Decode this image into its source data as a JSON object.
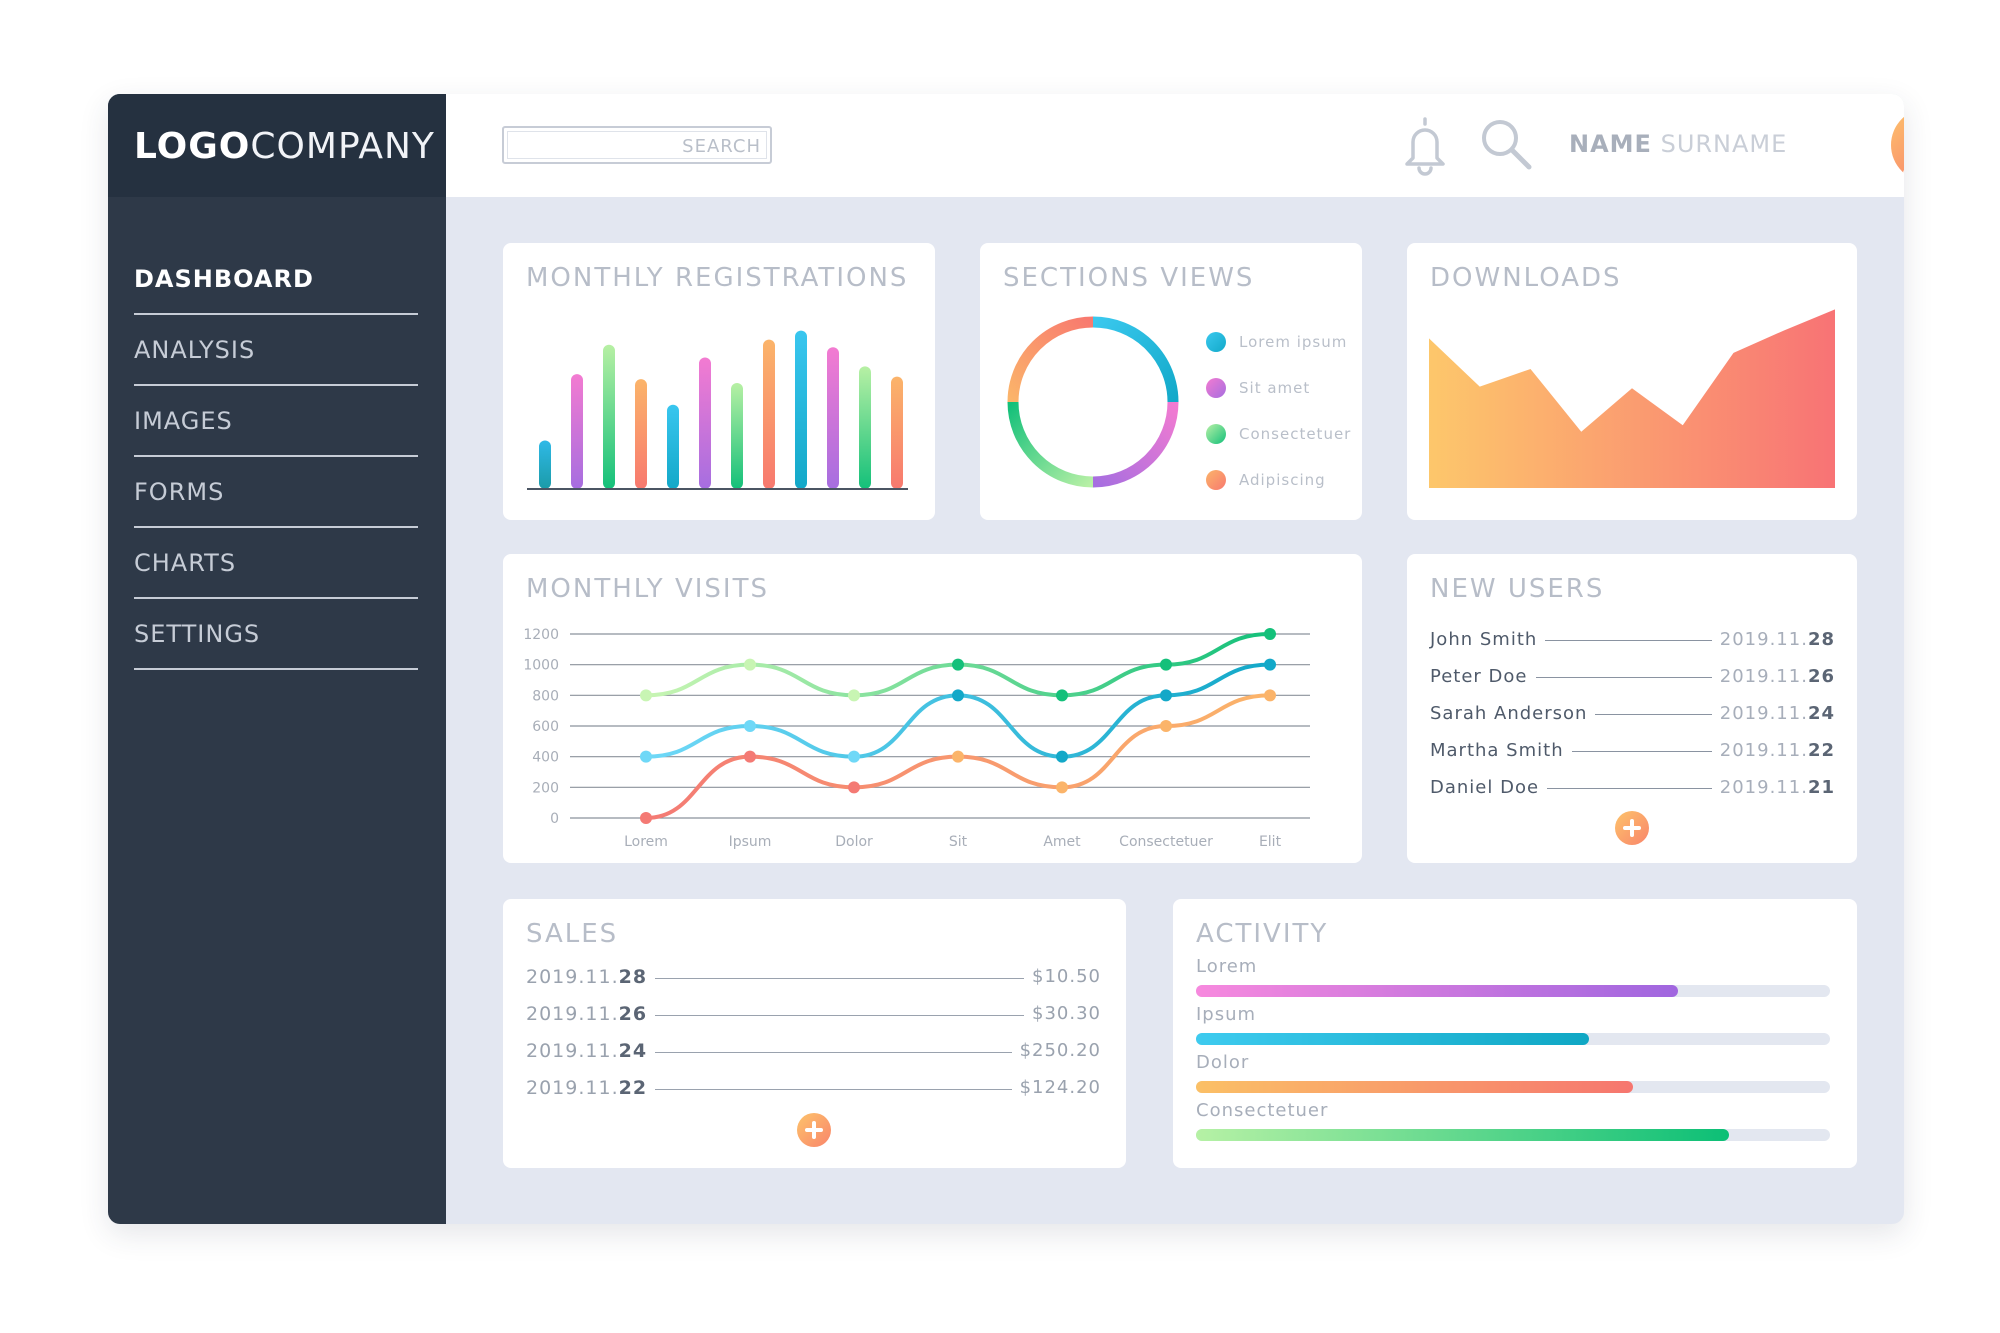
{
  "logo": {
    "bold": "LOGO",
    "light": "COMPANY"
  },
  "sidebar": {
    "items": [
      {
        "label": "DASHBOARD",
        "active": true
      },
      {
        "label": "ANALYSIS",
        "active": false
      },
      {
        "label": "IMAGES",
        "active": false
      },
      {
        "label": "FORMS",
        "active": false
      },
      {
        "label": "CHARTS",
        "active": false
      },
      {
        "label": "SETTINGS",
        "active": false
      }
    ]
  },
  "header": {
    "search_placeholder": "SEARCH",
    "user_name": "NAME",
    "user_surname": "SURNAME",
    "icons": [
      "bell-icon",
      "search-icon",
      "avatar"
    ]
  },
  "colors": {
    "sidebar": "#2e3948",
    "logo_bar": "#253140",
    "background": "#e3e7f1",
    "orange": "#fbb46a",
    "coral": "#f8796f",
    "pink": "#f37bd1",
    "purple": "#a66ee0",
    "cyan": "#39c6ef",
    "teal": "#13a8c8",
    "green": "#14c07a",
    "lime": "#aeeea0"
  },
  "monthly_registrations": {
    "title": "MONTHLY REGISTRATIONS",
    "chart_data": {
      "type": "bar",
      "values": [
        38,
        90,
        113,
        86,
        66,
        103,
        83,
        117,
        124,
        111,
        96,
        88
      ],
      "ylim": [
        0,
        130
      ],
      "colors": [
        [
          "#2fb9e7",
          "#1b9ba8"
        ],
        [
          "#f37bd1",
          "#a66ee0"
        ],
        [
          "#b7f0a4",
          "#14c07a"
        ],
        [
          "#fbb46a",
          "#f8796f"
        ],
        [
          "#39c6ef",
          "#13a8c8"
        ],
        [
          "#f37bd1",
          "#a66ee0"
        ],
        [
          "#b7f0a4",
          "#14c07a"
        ],
        [
          "#fbb46a",
          "#f8796f"
        ],
        [
          "#39c6ef",
          "#13a8c8"
        ],
        [
          "#f37bd1",
          "#a66ee0"
        ],
        [
          "#b7f0a4",
          "#14c07a"
        ],
        [
          "#fbb46a",
          "#f8796f"
        ]
      ]
    }
  },
  "sections_views": {
    "title": "SECTIONS VIEWS",
    "chart_data": {
      "type": "pie",
      "categories": [
        "Lorem ipsum",
        "Sit amet",
        "Consectetuer",
        "Adipiscing"
      ],
      "values": [
        25,
        25,
        25,
        25
      ],
      "colors": [
        [
          "#3ac8ee",
          "#12a9c9"
        ],
        [
          "#f37bd1",
          "#a66ee0"
        ],
        [
          "#b8f0a6",
          "#14c07a"
        ],
        [
          "#fbb46a",
          "#f8796f"
        ]
      ]
    }
  },
  "downloads": {
    "title": "DOWNLOADS",
    "chart_data": {
      "type": "area",
      "values": [
        93,
        63,
        74,
        35,
        62,
        39,
        84,
        98,
        111
      ],
      "ylim": [
        0,
        115
      ]
    }
  },
  "monthly_visits": {
    "title": "MONTHLY VISITS",
    "chart_data": {
      "type": "line",
      "categories": [
        "Lorem",
        "Ipsum",
        "Dolor",
        "Sit",
        "Amet",
        "Consectetuer",
        "Elit"
      ],
      "yticks": [
        1200,
        1000,
        800,
        600,
        400,
        200,
        0
      ],
      "ylim": [
        0,
        1200
      ],
      "series": [
        {
          "values": [
            800,
            1000,
            800,
            1000,
            800,
            1000,
            1200
          ],
          "colors": [
            "#c8f5b3",
            "#14c07a"
          ]
        },
        {
          "values": [
            400,
            600,
            400,
            800,
            400,
            800,
            1000
          ],
          "colors": [
            "#6fd8f7",
            "#13a8c8"
          ]
        },
        {
          "values": [
            0,
            400,
            200,
            400,
            200,
            600,
            800
          ],
          "colors": [
            "#f47a74",
            "#fbb46a"
          ]
        }
      ]
    }
  },
  "new_users": {
    "title": "NEW USERS",
    "rows": [
      {
        "name": "John Smith",
        "date_prefix": "2019.11.",
        "date_day": "28"
      },
      {
        "name": "Peter Doe",
        "date_prefix": "2019.11.",
        "date_day": "26"
      },
      {
        "name": "Sarah Anderson",
        "date_prefix": "2019.11.",
        "date_day": "24"
      },
      {
        "name": "Martha Smith",
        "date_prefix": "2019.11.",
        "date_day": "22"
      },
      {
        "name": "Daniel Doe",
        "date_prefix": "2019.11.",
        "date_day": "21"
      }
    ]
  },
  "sales": {
    "title": "SALES",
    "rows": [
      {
        "date_prefix": "2019.11.",
        "date_day": "28",
        "amount": "$10.50"
      },
      {
        "date_prefix": "2019.11.",
        "date_day": "26",
        "amount": "$30.30"
      },
      {
        "date_prefix": "2019.11.",
        "date_day": "24",
        "amount": "$250.20"
      },
      {
        "date_prefix": "2019.11.",
        "date_day": "22",
        "amount": "$124.20"
      }
    ]
  },
  "activity": {
    "title": "ACTIVITY",
    "items": [
      {
        "label": "Lorem",
        "fraction": 0.76,
        "colors": [
          "#f789de",
          "#a066df"
        ]
      },
      {
        "label": "Ipsum",
        "fraction": 0.62,
        "colors": [
          "#3ecbef",
          "#0fa7c4"
        ]
      },
      {
        "label": "Dolor",
        "fraction": 0.69,
        "colors": [
          "#fbc066",
          "#f6766f"
        ]
      },
      {
        "label": "Consectetuer",
        "fraction": 0.84,
        "colors": [
          "#b6f1a5",
          "#0cbf76"
        ]
      }
    ]
  }
}
